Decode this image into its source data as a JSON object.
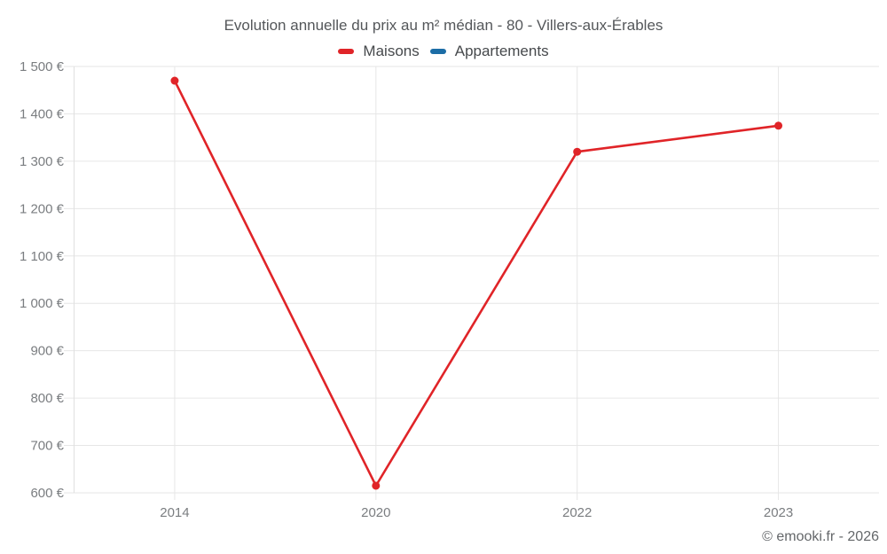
{
  "chart_data": {
    "type": "line",
    "title": "Evolution annuelle du prix au m² médian - 80 - Villers-aux-Érables",
    "categories": [
      "2014",
      "2020",
      "2022",
      "2023"
    ],
    "series": [
      {
        "name": "Maisons",
        "color": "#e02428",
        "values": [
          1470,
          615,
          1320,
          1375
        ]
      },
      {
        "name": "Appartements",
        "color": "#1c6da6",
        "values": []
      }
    ],
    "y_axis": {
      "min": 600,
      "max": 1500,
      "step": 100,
      "unit": "€",
      "tick_labels": [
        "600 €",
        "700 €",
        "800 €",
        "900 €",
        "1 000 €",
        "1 100 €",
        "1 200 €",
        "1 300 €",
        "1 400 €",
        "1 500 €"
      ]
    },
    "legend_position": "top",
    "grid": true,
    "colors": {
      "grid": "#e6e6e6",
      "axis": "#e0e0e0",
      "tick_text": "#7a7d80",
      "title_text": "#54575a",
      "legend_text": "#46494c"
    }
  },
  "footer": {
    "copyright": "© emooki.fr - 2026"
  }
}
